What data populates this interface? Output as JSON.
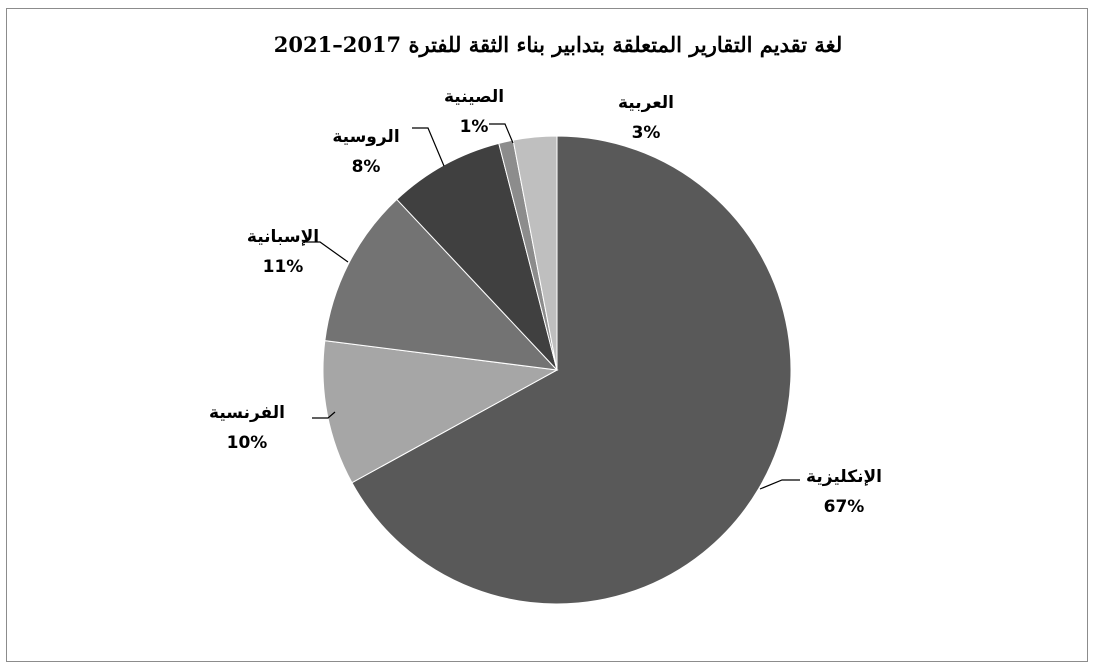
{
  "chart_data": {
    "type": "pie",
    "title": "لغة تقديم التقارير المتعلقة بتدابير بناء الثقة للفترة 2017–2021",
    "start_angle_deg": 0,
    "direction": "clockwise",
    "slices": [
      {
        "label": "الإنكليزية",
        "value": 67,
        "display": "67%",
        "color": "#595959"
      },
      {
        "label": "الفرنسية",
        "value": 10,
        "display": "10%",
        "color": "#a6a6a6"
      },
      {
        "label": "الإسبانية",
        "value": 11,
        "display": "11%",
        "color": "#737373"
      },
      {
        "label": "الروسية",
        "value": 8,
        "display": "8%",
        "color": "#404040"
      },
      {
        "label": "الصينية",
        "value": 1,
        "display": "1%",
        "color": "#8c8c8c"
      },
      {
        "label": "العربية",
        "value": 3,
        "display": "3%",
        "color": "#bfbfbf"
      }
    ]
  }
}
